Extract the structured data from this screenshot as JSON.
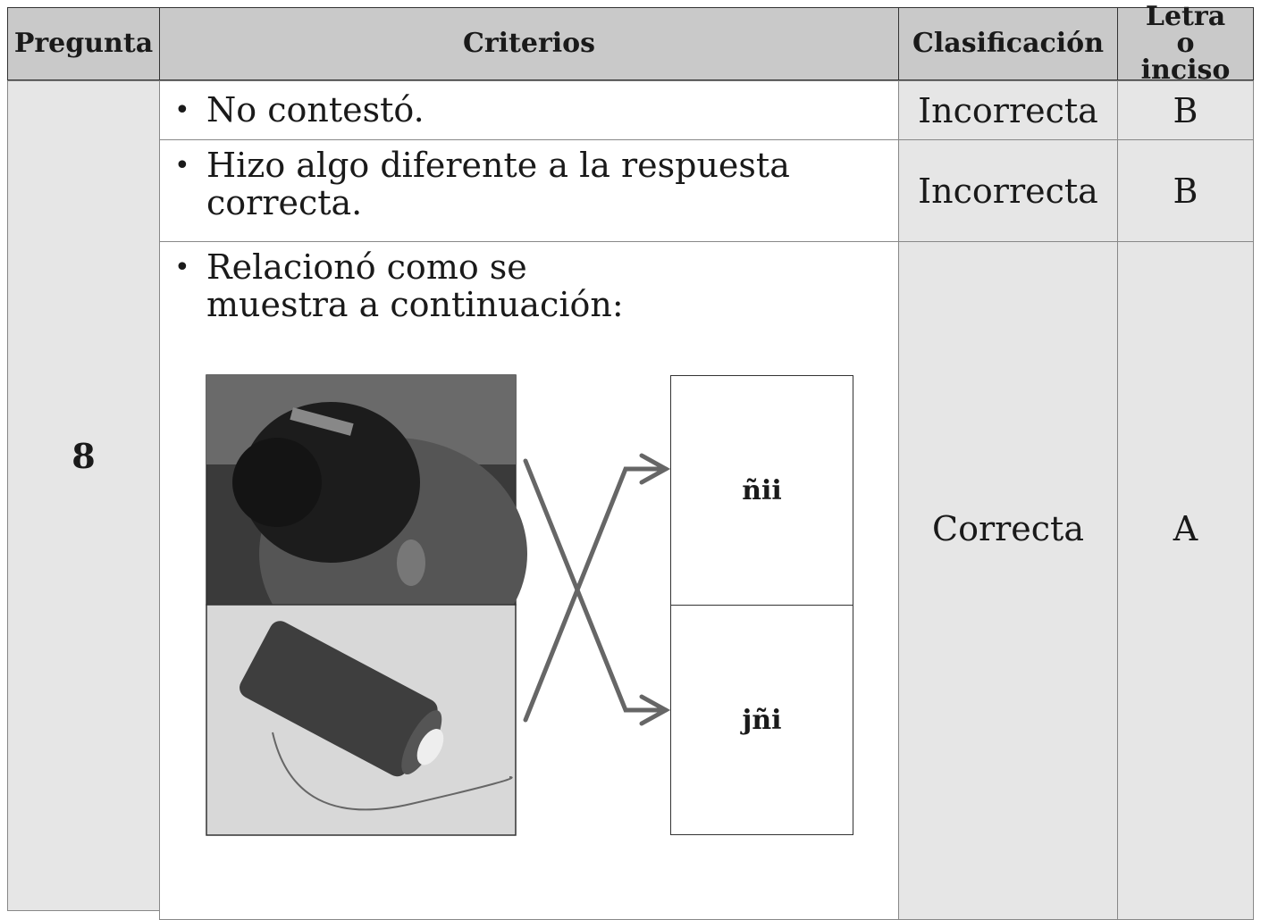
{
  "table": {
    "headers": [
      "Pregunta",
      "Criterios",
      "Clasificación",
      "Letra o inciso"
    ],
    "pregunta": "8",
    "rows": [
      {
        "criterio": "No contestó.",
        "clasificacion": "Incorrecta",
        "letra": "B"
      },
      {
        "criterio": "Hizo algo diferente a la respuesta correcta.",
        "clasificacion": "Incorrecta",
        "letra": "B"
      },
      {
        "criterio": "Relacionó como se muestra a continuación:",
        "clasificacion": "Correcta",
        "letra": "A"
      }
    ],
    "match_labels": [
      "ñii",
      "jñi"
    ]
  }
}
